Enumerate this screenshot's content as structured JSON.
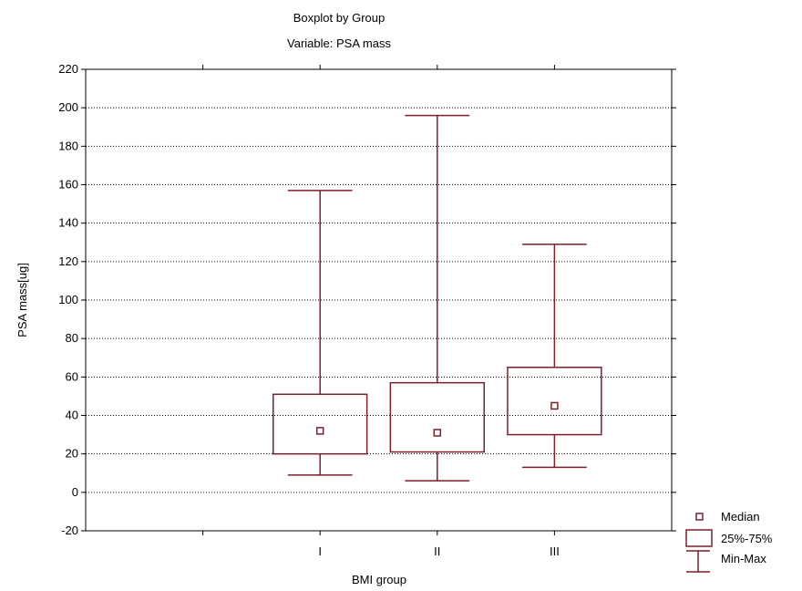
{
  "chart_data": {
    "type": "boxplot",
    "title": "Boxplot by Group",
    "subtitle": "Variable: PSA mass",
    "xlabel": "BMI group",
    "ylabel": "PSA mass[ug]",
    "ylim": [
      -20,
      220
    ],
    "yticks": [
      "-20",
      "0",
      "20",
      "40",
      "60",
      "80",
      "100",
      "120",
      "140",
      "160",
      "180",
      "200",
      "220"
    ],
    "categories": [
      "I",
      "II",
      "III"
    ],
    "boxes": [
      {
        "category": "I",
        "min": 9,
        "q1": 20,
        "median": 32,
        "q3": 51,
        "max": 157
      },
      {
        "category": "II",
        "min": 6,
        "q1": 21,
        "median": 31,
        "q3": 57,
        "max": 196
      },
      {
        "category": "III",
        "min": 13,
        "q1": 30,
        "median": 45,
        "q3": 65,
        "max": 129
      }
    ],
    "grid": true,
    "legend_position": "bottom-right",
    "legend": [
      {
        "key": "median",
        "label": "Median"
      },
      {
        "key": "box",
        "label": "25%-75%"
      },
      {
        "key": "whisker",
        "label": "Min-Max"
      }
    ],
    "colors": {
      "mark": "#7a1f2b",
      "grid": "#000000",
      "axis": "#000000"
    }
  }
}
